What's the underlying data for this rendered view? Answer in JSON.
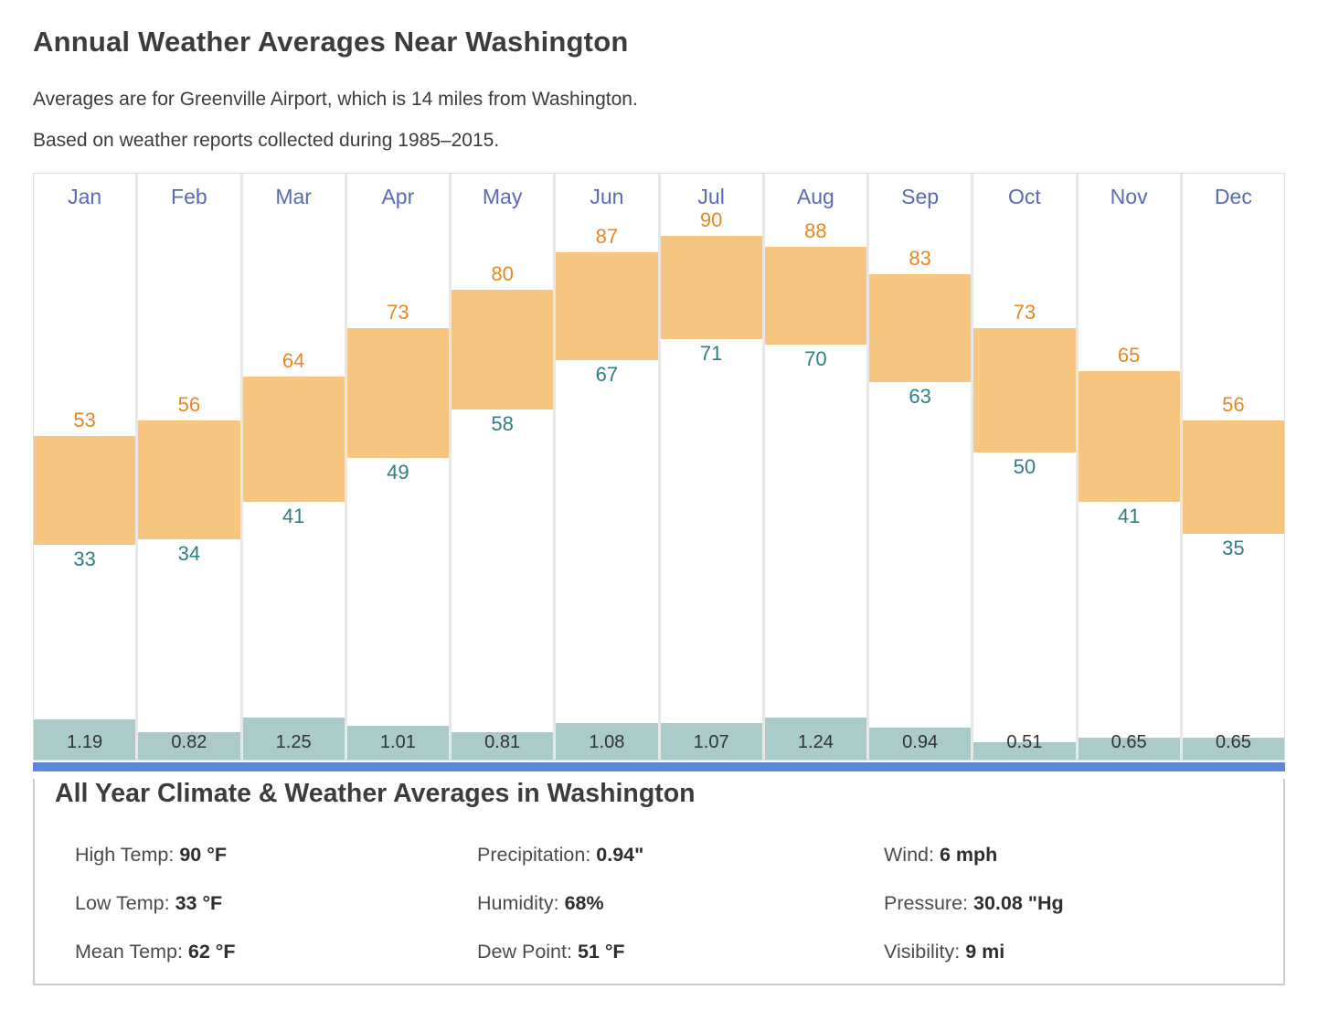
{
  "header": {
    "title": "Annual Weather Averages Near Washington",
    "subtitle_location": "Averages are for Greenville Airport, which is 14 miles from Washington.",
    "subtitle_period": "Based on weather reports collected during 1985–2015."
  },
  "chart_data": {
    "type": "bar",
    "title": "Annual Weather Averages Near Washington",
    "categories": [
      "Jan",
      "Feb",
      "Mar",
      "Apr",
      "May",
      "Jun",
      "Jul",
      "Aug",
      "Sep",
      "Oct",
      "Nov",
      "Dec"
    ],
    "series": [
      {
        "name": "High Temp (°F)",
        "values": [
          53,
          56,
          64,
          73,
          80,
          87,
          90,
          88,
          83,
          73,
          65,
          56
        ]
      },
      {
        "name": "Low Temp (°F)",
        "values": [
          33,
          34,
          41,
          49,
          58,
          67,
          71,
          70,
          63,
          50,
          41,
          35
        ]
      },
      {
        "name": "Precipitation (in)",
        "values": [
          1.19,
          0.82,
          1.25,
          1.01,
          0.81,
          1.08,
          1.07,
          1.24,
          0.94,
          0.51,
          0.65,
          0.65
        ]
      }
    ],
    "ylim": [
      33,
      90
    ],
    "grid": false,
    "legend_position": "none",
    "colors": {
      "temp_bar": "#f6c580",
      "high_label": "#e8871f",
      "low_label": "#2d7f85",
      "precip_bar": "#aacbc9",
      "month_label": "#5a6ab4",
      "divider": "#5b87d8"
    }
  },
  "summary": {
    "title": "All Year Climate & Weather Averages in Washington",
    "stats": [
      {
        "label": "High Temp: ",
        "value": "90 °F"
      },
      {
        "label": "Precipitation: ",
        "value": "0.94\""
      },
      {
        "label": "Wind: ",
        "value": "6 mph"
      },
      {
        "label": "Low Temp: ",
        "value": "33 °F"
      },
      {
        "label": "Humidity: ",
        "value": "68%"
      },
      {
        "label": "Pressure: ",
        "value": "30.08 \"Hg"
      },
      {
        "label": "Mean Temp: ",
        "value": "62 °F"
      },
      {
        "label": "Dew Point: ",
        "value": "51 °F"
      },
      {
        "label": "Visibility: ",
        "value": "9 mi"
      }
    ]
  }
}
